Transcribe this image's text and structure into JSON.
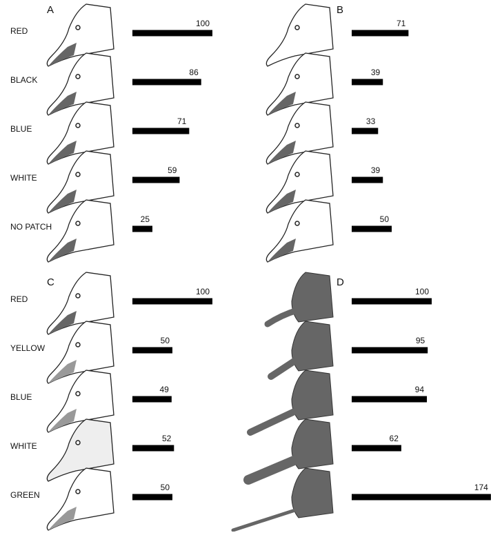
{
  "chart_data": [
    {
      "type": "bar",
      "panel": "A",
      "categories": [
        "RED",
        "BLACK",
        "BLUE",
        "WHITE",
        "NO PATCH"
      ],
      "values": [
        100,
        86,
        71,
        59,
        25
      ],
      "color": "#000000"
    },
    {
      "type": "bar",
      "panel": "B",
      "categories": [
        null,
        null,
        null,
        null,
        null
      ],
      "values": [
        71,
        39,
        33,
        39,
        50
      ],
      "color": "#000000"
    },
    {
      "type": "bar",
      "panel": "C",
      "categories": [
        "RED",
        "YELLOW",
        "BLUE",
        "WHITE",
        "GREEN"
      ],
      "values": [
        100,
        50,
        49,
        52,
        50
      ],
      "color": "#000000"
    },
    {
      "type": "bar",
      "panel": "D",
      "categories": [
        null,
        null,
        null,
        null,
        null
      ],
      "values": [
        100,
        95,
        94,
        62,
        174
      ],
      "color": "#000000"
    }
  ]
}
